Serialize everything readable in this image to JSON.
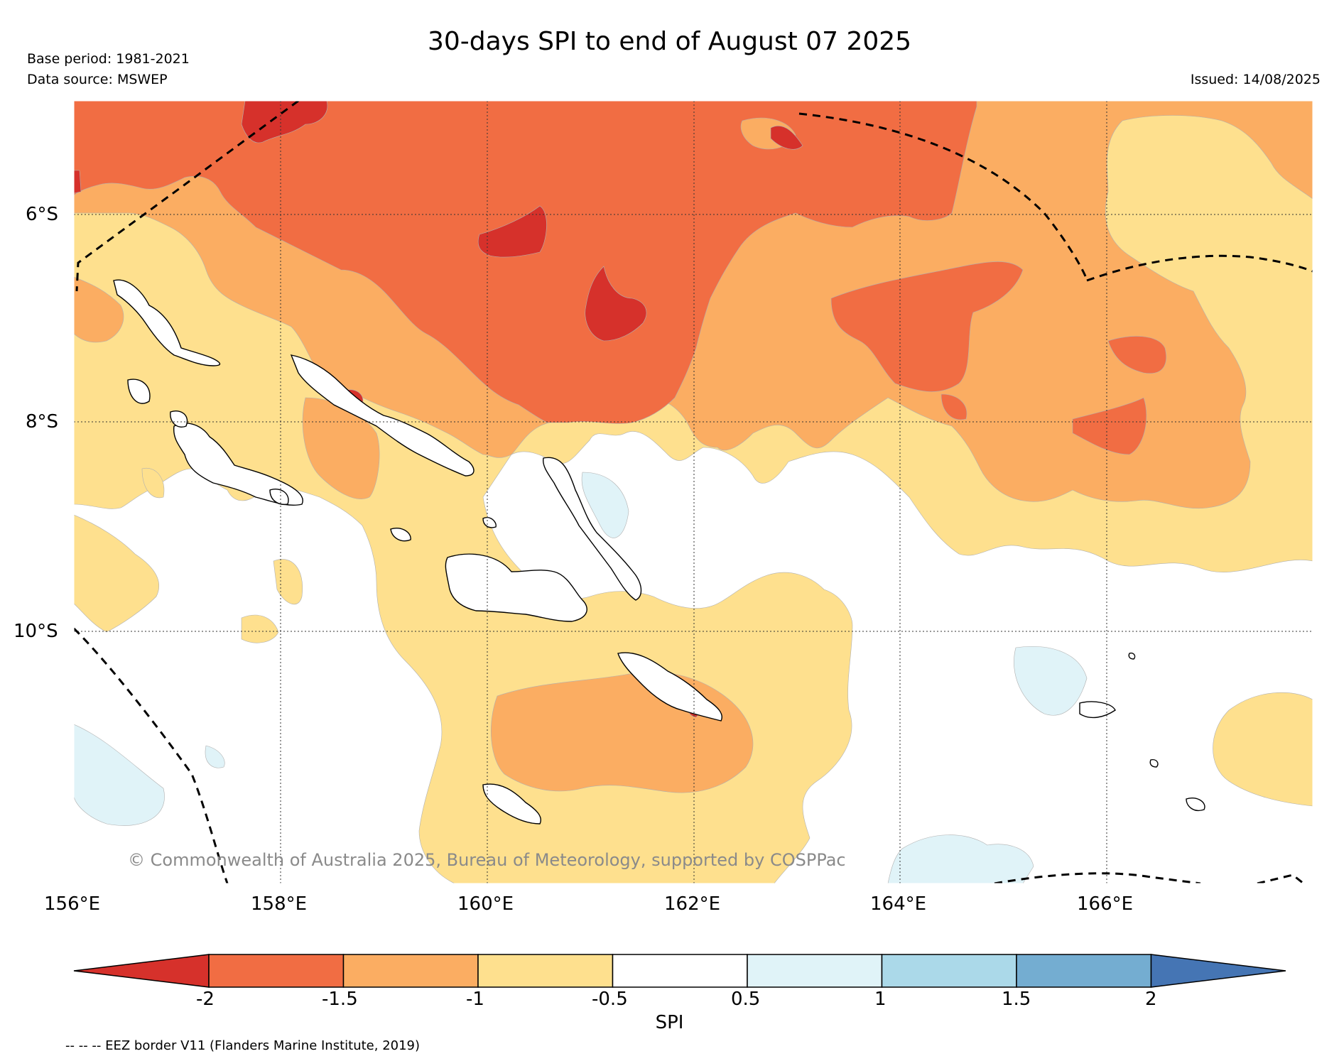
{
  "header": {
    "title": "30-days SPI to end of August 07 2025",
    "base_period": "Base period: 1981-2021",
    "data_source": "Data source: MSWEP",
    "issued": "Issued: 14/08/2025"
  },
  "map": {
    "copyright": "© Commonwealth of Australia 2025, Bureau of Meteorology, supported by COSPPac",
    "lat_labels": [
      "6°S",
      "8°S",
      "10°S"
    ],
    "lon_labels": [
      "156°E",
      "158°E",
      "160°E",
      "162°E",
      "164°E",
      "166°E"
    ],
    "extent": {
      "lon": [
        156,
        168
      ],
      "lat": [
        -5,
        -12.6
      ]
    }
  },
  "colorbar": {
    "title": "SPI",
    "ticks": [
      "-2",
      "-1.5",
      "-1",
      "-0.5",
      "0.5",
      "1",
      "1.5",
      "2"
    ],
    "colors": [
      "#d6312b",
      "#f16d43",
      "#fbad62",
      "#fee08e",
      "#ffffff",
      "#e0f3f8",
      "#abd9e9",
      "#74add1",
      "#4575b4"
    ]
  },
  "footer": {
    "eez_note": "-- -- -- EEZ border V11 (Flanders Marine Institute, 2019)"
  }
}
